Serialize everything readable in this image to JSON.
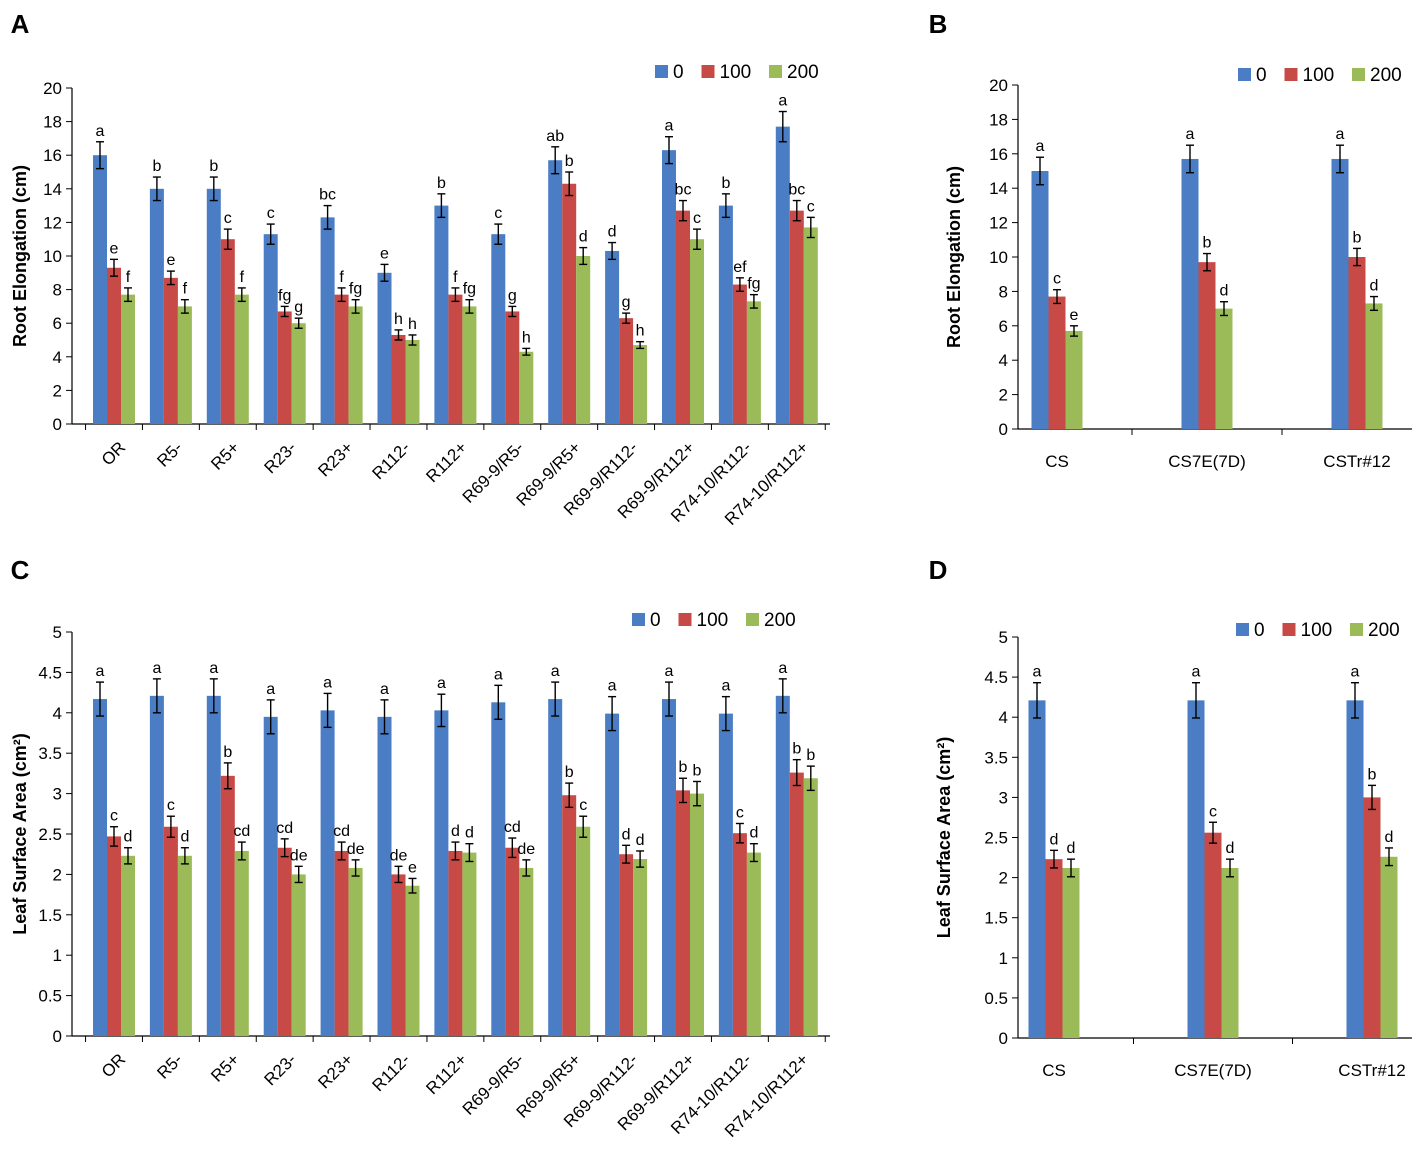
{
  "colors": {
    "s0": "#4a7dc4",
    "s100": "#c84a47",
    "s200": "#9bbb59"
  },
  "chart_data": [
    {
      "id": "A",
      "panel_label": "A",
      "type": "bar",
      "title": "",
      "xlabel": "",
      "ylabel": "Root Elongation (cm)",
      "ylim": [
        0,
        20
      ],
      "yticks": [
        "0",
        "2",
        "4",
        "6",
        "8",
        "10",
        "12",
        "14",
        "16",
        "18",
        "20"
      ],
      "categories": [
        "OR",
        "R5-",
        "R5+",
        "R23-",
        "R23+",
        "R112-",
        "R112+",
        "R69-9/R5-",
        "R69-9/R5+",
        "R69-9/R112-",
        "R69-9/R112+",
        "R74-10/R112-",
        "R74-10/R112+"
      ],
      "legend_position": "top-right",
      "series": [
        {
          "name": "0",
          "values": [
            16.0,
            14.0,
            14.0,
            11.3,
            12.3,
            9.0,
            13.0,
            11.3,
            15.7,
            10.3,
            16.3,
            13.0,
            17.7
          ],
          "errors": [
            0.8,
            0.7,
            0.7,
            0.6,
            0.7,
            0.5,
            0.7,
            0.6,
            0.8,
            0.5,
            0.8,
            0.7,
            0.9
          ],
          "labels": [
            "a",
            "b",
            "b",
            "c",
            "bc",
            "e",
            "b",
            "c",
            "ab",
            "d",
            "a",
            "b",
            "a"
          ]
        },
        {
          "name": "100",
          "values": [
            9.3,
            8.7,
            11.0,
            6.7,
            7.7,
            5.3,
            7.7,
            6.7,
            14.3,
            6.3,
            12.7,
            8.3,
            12.7
          ],
          "errors": [
            0.5,
            0.4,
            0.6,
            0.3,
            0.4,
            0.3,
            0.4,
            0.3,
            0.7,
            0.3,
            0.6,
            0.4,
            0.6
          ],
          "labels": [
            "e",
            "e",
            "c",
            "fg",
            "f",
            "h",
            "f",
            "g",
            "b",
            "g",
            "bc",
            "ef",
            "bc"
          ]
        },
        {
          "name": "200",
          "values": [
            7.7,
            7.0,
            7.7,
            6.0,
            7.0,
            5.0,
            7.0,
            4.3,
            10.0,
            4.7,
            11.0,
            7.3,
            11.7
          ],
          "errors": [
            0.4,
            0.4,
            0.4,
            0.3,
            0.4,
            0.3,
            0.4,
            0.2,
            0.5,
            0.2,
            0.6,
            0.4,
            0.6
          ],
          "labels": [
            "f",
            "f",
            "f",
            "g",
            "fg",
            "h",
            "fg",
            "h",
            "d",
            "h",
            "c",
            "fg",
            "c"
          ]
        }
      ]
    },
    {
      "id": "B",
      "panel_label": "B",
      "type": "bar",
      "title": "",
      "xlabel": "",
      "ylabel": "Root Elongation (cm)",
      "ylim": [
        0,
        20
      ],
      "yticks": [
        "0",
        "2",
        "4",
        "6",
        "8",
        "10",
        "12",
        "14",
        "16",
        "18",
        "20"
      ],
      "categories": [
        "CS",
        "CS7E(7D)",
        "CSTr#12"
      ],
      "legend_position": "top-right",
      "series": [
        {
          "name": "0",
          "values": [
            15.0,
            15.7,
            15.7
          ],
          "errors": [
            0.8,
            0.8,
            0.8
          ],
          "labels": [
            "a",
            "a",
            "a"
          ]
        },
        {
          "name": "100",
          "values": [
            7.7,
            9.7,
            10.0
          ],
          "errors": [
            0.4,
            0.5,
            0.5
          ],
          "labels": [
            "c",
            "b",
            "b"
          ]
        },
        {
          "name": "200",
          "values": [
            5.7,
            7.0,
            7.3
          ],
          "errors": [
            0.3,
            0.4,
            0.4
          ],
          "labels": [
            "e",
            "d",
            "d"
          ]
        }
      ]
    },
    {
      "id": "C",
      "panel_label": "C",
      "type": "bar",
      "title": "",
      "xlabel": "",
      "ylabel": "Leaf Surface Area (cm²)",
      "ylim": [
        0,
        5
      ],
      "yticks": [
        "0",
        "0.5",
        "1",
        "1.5",
        "2",
        "2.5",
        "3",
        "3.5",
        "4",
        "4.5",
        "5"
      ],
      "categories": [
        "OR",
        "R5-",
        "R5+",
        "R23-",
        "R23+",
        "R112-",
        "R112+",
        "R69-9/R5-",
        "R69-9/R5+",
        "R69-9/R112-",
        "R69-9/R112+",
        "R74-10/R112-",
        "R74-10/R112+"
      ],
      "legend_position": "top-right",
      "series": [
        {
          "name": "0",
          "values": [
            4.17,
            4.21,
            4.21,
            3.95,
            4.03,
            3.95,
            4.03,
            4.13,
            4.17,
            3.99,
            4.17,
            3.99,
            4.21
          ],
          "errors": [
            0.21,
            0.21,
            0.21,
            0.21,
            0.21,
            0.21,
            0.2,
            0.21,
            0.21,
            0.21,
            0.21,
            0.21,
            0.21
          ],
          "labels": [
            "a",
            "a",
            "a",
            "a",
            "a",
            "a",
            "a",
            "a",
            "a",
            "a",
            "a",
            "a",
            "a"
          ]
        },
        {
          "name": "100",
          "values": [
            2.47,
            2.59,
            3.22,
            2.33,
            2.29,
            2.0,
            2.29,
            2.33,
            2.98,
            2.25,
            3.04,
            2.51,
            3.26
          ],
          "errors": [
            0.12,
            0.13,
            0.16,
            0.11,
            0.11,
            0.1,
            0.11,
            0.12,
            0.15,
            0.11,
            0.15,
            0.12,
            0.16
          ],
          "labels": [
            "c",
            "c",
            "b",
            "cd",
            "cd",
            "de",
            "d",
            "cd",
            "b",
            "d",
            "b",
            "c",
            "b"
          ]
        },
        {
          "name": "200",
          "values": [
            2.23,
            2.23,
            2.29,
            2.0,
            2.08,
            1.86,
            2.27,
            2.08,
            2.59,
            2.19,
            3.0,
            2.27,
            3.19
          ],
          "errors": [
            0.1,
            0.1,
            0.11,
            0.1,
            0.1,
            0.09,
            0.11,
            0.1,
            0.13,
            0.1,
            0.15,
            0.11,
            0.15
          ],
          "labels": [
            "d",
            "d",
            "cd",
            "de",
            "de",
            "e",
            "d",
            "de",
            "c",
            "d",
            "b",
            "d",
            "b"
          ]
        }
      ]
    },
    {
      "id": "D",
      "panel_label": "D",
      "type": "bar",
      "title": "",
      "xlabel": "",
      "ylabel": "Leaf Surface Area (cm²)",
      "ylim": [
        0,
        5
      ],
      "yticks": [
        "0",
        "0.5",
        "1",
        "1.5",
        "2",
        "2.5",
        "3",
        "3.5",
        "4",
        "4.5",
        "5"
      ],
      "categories": [
        "CS",
        "CS7E(7D)",
        "CSTr#12"
      ],
      "legend_position": "top-right",
      "series": [
        {
          "name": "0",
          "values": [
            4.21,
            4.21,
            4.21
          ],
          "errors": [
            0.22,
            0.22,
            0.22
          ],
          "labels": [
            "a",
            "a",
            "a"
          ]
        },
        {
          "name": "100",
          "values": [
            2.23,
            2.56,
            3.0
          ],
          "errors": [
            0.11,
            0.13,
            0.15
          ],
          "labels": [
            "d",
            "c",
            "b"
          ]
        },
        {
          "name": "200",
          "values": [
            2.12,
            2.12,
            2.26
          ],
          "errors": [
            0.11,
            0.11,
            0.11
          ],
          "labels": [
            "d",
            "d",
            "d"
          ]
        }
      ]
    }
  ]
}
